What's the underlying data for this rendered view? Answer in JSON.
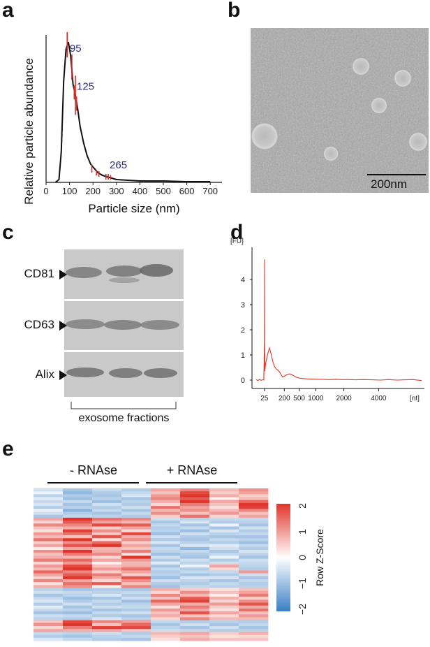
{
  "panels": {
    "a": "a",
    "b": "b",
    "c": "c",
    "d": "d",
    "e": "e"
  },
  "chart_data": [
    {
      "type": "line",
      "panel": "a",
      "xlabel": "Particle size (nm)",
      "ylabel": "Relative particle abundance",
      "xlim": [
        0,
        750
      ],
      "xticks": [
        "0",
        "100",
        "200",
        "300",
        "400",
        "500",
        "600",
        "700"
      ],
      "annotations": [
        "95",
        "125",
        "265"
      ],
      "annotation_x": [
        95,
        125,
        265
      ],
      "x": [
        40,
        55,
        65,
        75,
        85,
        95,
        105,
        115,
        125,
        135,
        145,
        160,
        175,
        190,
        205,
        220,
        240,
        260,
        280,
        300,
        350,
        400,
        450,
        500,
        600,
        700
      ],
      "y": [
        0.0,
        0.02,
        0.22,
        0.72,
        0.95,
        1.0,
        0.9,
        0.7,
        0.62,
        0.52,
        0.4,
        0.28,
        0.19,
        0.13,
        0.1,
        0.07,
        0.05,
        0.04,
        0.03,
        0.02,
        0.015,
        0.01,
        0.01,
        0.01,
        0.005,
        0.005
      ],
      "errorbars_x": [
        90,
        110,
        120,
        125,
        130,
        195,
        215,
        225,
        255,
        265,
        275
      ],
      "errorbars_y": [
        0.98,
        0.82,
        0.64,
        0.62,
        0.56,
        0.1,
        0.07,
        0.06,
        0.04,
        0.04,
        0.035
      ],
      "errorbars_err": [
        0.09,
        0.09,
        0.05,
        0.14,
        0.05,
        0.03,
        0.02,
        0.02,
        0.02,
        0.02,
        0.015
      ],
      "line_color": "#111111",
      "error_color": "#d0302a",
      "annotation_color": "#2c2c7a"
    },
    {
      "type": "line",
      "panel": "d",
      "yunit": "[FU]",
      "xunit": "[nt]",
      "yticks": [
        "4",
        "3",
        "2",
        "1",
        "0"
      ],
      "xticks": [
        "25",
        "200",
        "500",
        "1000",
        "2000",
        "4000"
      ],
      "ylim": [
        -0.4,
        5
      ],
      "x": [
        0,
        0.1,
        0.2,
        0.3,
        0.4,
        0.46,
        0.5,
        0.505,
        0.515,
        0.525,
        0.55,
        0.6,
        0.7,
        0.8,
        0.9,
        1.0,
        1.1,
        1.2,
        1.3,
        1.4,
        1.5,
        1.6,
        1.7,
        1.8,
        2.0,
        2.2,
        2.4,
        2.6,
        2.8,
        3.0,
        3.3,
        3.6,
        4.0,
        4.4,
        4.8,
        5.2,
        5.6,
        6.0,
        6.5,
        7.0,
        7.5,
        8.0,
        8.5,
        9.0,
        9.5,
        10.0
      ],
      "y": [
        0.02,
        -0.02,
        0.03,
        -0.01,
        0.02,
        0.0,
        1.5,
        4.8,
        2.0,
        0.35,
        0.55,
        0.75,
        1.05,
        1.28,
        1.05,
        0.75,
        0.55,
        0.45,
        0.4,
        0.33,
        0.22,
        0.12,
        0.15,
        0.2,
        0.25,
        0.2,
        0.12,
        0.08,
        0.06,
        0.05,
        0.04,
        0.04,
        0.03,
        0.02,
        0.03,
        0.02,
        0.02,
        0.01,
        0.02,
        0.01,
        0.0,
        0.02,
        0.0,
        0.01,
        0.02,
        -0.02
      ],
      "line_color": "#d93a2b"
    },
    {
      "type": "heatmap",
      "panel": "e",
      "groups": [
        "- RNAse",
        "+ RNAse"
      ],
      "colorbar_label": "Row Z-Score",
      "colorbar_ticks": [
        "2",
        "1",
        "0",
        "−1",
        "−2"
      ],
      "colorbar_range": [
        -2,
        2
      ],
      "low_color": "#3a7fc4",
      "mid_color": "#ffffff",
      "high_color": "#e0352b",
      "n_rows": 52,
      "n_cols": 8,
      "values": [
        [
          -0.5,
          -0.9,
          -0.6,
          -0.8,
          0.9,
          1.2,
          0.7,
          1.1
        ],
        [
          -0.2,
          -1.1,
          -0.8,
          -0.6,
          0.6,
          1.8,
          0.5,
          0.9
        ],
        [
          -0.7,
          -0.8,
          -0.9,
          -0.4,
          1.0,
          2.2,
          0.8,
          0.5
        ],
        [
          -0.3,
          -1.0,
          -0.7,
          -0.9,
          1.2,
          1.6,
          0.2,
          0.7
        ],
        [
          -0.6,
          -0.6,
          -1.0,
          -0.7,
          0.8,
          2.0,
          0.9,
          1.5
        ],
        [
          -0.4,
          -0.9,
          -0.5,
          -0.8,
          0.4,
          1.3,
          0.6,
          2.1
        ],
        [
          -0.8,
          -0.7,
          -0.8,
          -0.5,
          1.4,
          0.9,
          0.3,
          1.9
        ],
        [
          -0.2,
          -1.2,
          -0.6,
          -0.9,
          0.7,
          1.1,
          0.7,
          1.2
        ],
        [
          -0.5,
          -0.8,
          -0.9,
          -0.6,
          1.1,
          0.6,
          1.0,
          0.6
        ],
        [
          -0.9,
          -0.6,
          -0.7,
          -0.8,
          0.5,
          1.4,
          0.4,
          0.9
        ],
        [
          0.9,
          2.1,
          1.4,
          1.2,
          -0.5,
          -0.7,
          -0.6,
          -0.6
        ],
        [
          0.4,
          1.6,
          0.9,
          0.7,
          -0.9,
          -0.4,
          -0.8,
          -0.7
        ],
        [
          1.2,
          1.2,
          1.8,
          1.6,
          -0.6,
          -0.9,
          -0.2,
          -0.9
        ],
        [
          0.6,
          0.8,
          0.5,
          0.9,
          -0.8,
          -0.6,
          -0.9,
          -0.5
        ],
        [
          0.3,
          1.9,
          1.1,
          0.4,
          -0.7,
          -1.0,
          -0.4,
          -0.8
        ],
        [
          1.0,
          1.4,
          0.6,
          1.8,
          -1.0,
          -0.5,
          -0.7,
          -0.6
        ],
        [
          0.7,
          0.6,
          1.7,
          0.8,
          -0.5,
          -0.8,
          -0.9,
          -0.9
        ],
        [
          1.4,
          2.2,
          0.3,
          1.1,
          -0.8,
          -0.9,
          -0.6,
          -0.7
        ],
        [
          0.5,
          1.1,
          1.5,
          0.5,
          -0.4,
          -0.7,
          -0.8,
          -1.0
        ],
        [
          0.9,
          1.7,
          2.1,
          0.9,
          -0.9,
          -0.4,
          -0.3,
          -0.6
        ],
        [
          0.2,
          0.9,
          0.7,
          0.6,
          -0.6,
          -1.1,
          -0.5,
          -0.8
        ],
        [
          1.1,
          2.0,
          0.8,
          1.3,
          -0.7,
          -0.6,
          -0.9,
          -0.4
        ],
        [
          0.6,
          1.3,
          1.2,
          0.3,
          -1.0,
          -0.8,
          -0.6,
          -0.7
        ],
        [
          0.8,
          0.7,
          0.4,
          2.0,
          -0.5,
          -0.9,
          -0.2,
          -0.9
        ],
        [
          1.3,
          1.5,
          0.9,
          1.0,
          -0.8,
          -0.5,
          -0.8,
          -0.5
        ],
        [
          0.4,
          1.0,
          0.2,
          0.7,
          -0.3,
          -0.7,
          -0.5,
          -0.6
        ],
        [
          1.0,
          1.8,
          0.6,
          0.8,
          -0.9,
          -0.2,
          0.9,
          -0.7
        ],
        [
          0.7,
          2.2,
          1.0,
          1.4,
          -0.6,
          -0.8,
          0.4,
          -0.8
        ],
        [
          1.5,
          1.2,
          0.5,
          0.9,
          -0.8,
          -0.6,
          -0.6,
          1.0
        ],
        [
          0.9,
          1.6,
          1.3,
          0.5,
          -0.7,
          -0.9,
          -0.8,
          -0.5
        ],
        [
          0.5,
          2.0,
          0.8,
          1.7,
          -1.0,
          -0.4,
          -0.4,
          -0.9
        ],
        [
          1.2,
          0.9,
          0.4,
          1.1,
          -0.5,
          -0.7,
          -0.9,
          -0.6
        ],
        [
          0.3,
          1.4,
          1.6,
          0.6,
          -0.8,
          -0.8,
          -0.6,
          -0.8
        ],
        [
          0.8,
          1.1,
          0.2,
          1.2,
          -0.9,
          -0.6,
          -0.7,
          -0.7
        ],
        [
          -0.7,
          -0.9,
          -0.8,
          -0.9,
          0.8,
          0.5,
          0.3,
          0.6
        ],
        [
          -0.5,
          -0.6,
          -0.7,
          -0.6,
          0.4,
          1.1,
          0.6,
          0.9
        ],
        [
          -0.9,
          -0.7,
          -0.4,
          -0.8,
          1.2,
          0.7,
          0.2,
          1.3
        ],
        [
          -0.6,
          -1.0,
          -0.9,
          -0.5,
          0.6,
          1.6,
          0.8,
          0.5
        ],
        [
          -0.4,
          -0.8,
          -0.6,
          -1.0,
          1.5,
          1.9,
          0.4,
          1.1
        ],
        [
          -0.8,
          -0.5,
          -0.8,
          -0.7,
          0.9,
          0.8,
          1.0,
          1.7
        ],
        [
          -0.3,
          -0.9,
          -0.5,
          -0.6,
          0.3,
          1.3,
          0.5,
          0.8
        ],
        [
          -0.6,
          -0.7,
          -0.9,
          -0.8,
          1.0,
          0.9,
          0.3,
          1.4
        ],
        [
          -0.9,
          -1.0,
          -0.6,
          -0.5,
          0.6,
          1.7,
          0.9,
          0.6
        ],
        [
          -0.5,
          -0.6,
          -0.8,
          -0.9,
          0.8,
          0.6,
          0.4,
          1.0
        ],
        [
          -0.7,
          -0.8,
          -0.4,
          -0.7,
          0.4,
          1.2,
          0.7,
          0.7
        ],
        [
          0.6,
          1.8,
          1.2,
          1.0,
          -0.6,
          -0.8,
          -0.7,
          -0.8
        ],
        [
          1.1,
          2.2,
          0.6,
          1.5,
          -0.9,
          -0.5,
          -0.9,
          -0.6
        ],
        [
          0.4,
          1.3,
          1.9,
          1.8,
          -0.7,
          -0.9,
          -0.5,
          -0.9
        ],
        [
          0.9,
          0.8,
          0.9,
          0.6,
          -0.5,
          -0.6,
          -0.8,
          -0.7
        ],
        [
          -0.6,
          -0.7,
          -0.5,
          -0.8,
          0.7,
          0.9,
          0.5,
          0.8
        ],
        [
          -0.8,
          -0.9,
          -0.7,
          -0.6,
          0.5,
          0.6,
          0.3,
          0.4
        ],
        [
          -0.4,
          -0.6,
          -0.8,
          -0.9,
          0.3,
          0.8,
          0.6,
          0.6
        ]
      ]
    }
  ],
  "panel_b": {
    "scale_label": "200nm"
  },
  "panel_c": {
    "bands": [
      "CD81",
      "CD63",
      "Alix"
    ],
    "footer": "exosome fractions"
  }
}
